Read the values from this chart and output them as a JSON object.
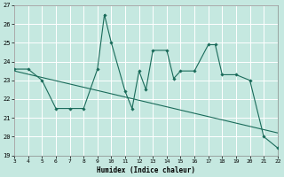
{
  "data_x": [
    3,
    4,
    5,
    6,
    7,
    8,
    9,
    9.5,
    10,
    11,
    11.5,
    12,
    12.5,
    13,
    14,
    14.5,
    15,
    16,
    17,
    17.5,
    18,
    19,
    20,
    21,
    22
  ],
  "data_y": [
    23.6,
    23.6,
    23.0,
    21.5,
    21.5,
    21.5,
    23.6,
    26.5,
    25.0,
    22.4,
    21.5,
    23.5,
    22.5,
    24.6,
    24.6,
    23.1,
    23.5,
    23.5,
    24.9,
    24.9,
    23.3,
    23.3,
    23.0,
    20.0,
    19.4
  ],
  "trend_x": [
    3,
    22
  ],
  "trend_y": [
    23.5,
    20.2
  ],
  "bg_color": "#c5e8e0",
  "line_color": "#1a6b5a",
  "grid_color": "#b0d8ce",
  "xlabel": "Humidex (Indice chaleur)",
  "ylim": [
    19,
    27
  ],
  "xlim": [
    3,
    22
  ],
  "yticks": [
    19,
    20,
    21,
    22,
    23,
    24,
    25,
    26,
    27
  ],
  "xticks": [
    3,
    4,
    5,
    6,
    7,
    8,
    9,
    10,
    11,
    12,
    13,
    14,
    15,
    16,
    17,
    18,
    19,
    20,
    21,
    22
  ]
}
